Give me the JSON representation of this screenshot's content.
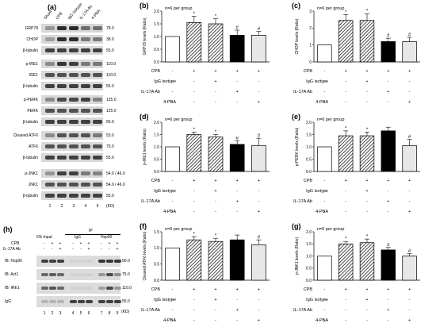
{
  "panel_a": {
    "letter": "(a)",
    "lanes": [
      "Sham",
      "CPB",
      "IgG isotype",
      "IL-17A Ab",
      "4-PBA"
    ],
    "lane_numbers": [
      "1",
      "2",
      "3",
      "4",
      "5"
    ],
    "kd_label": "(KD)",
    "rows": [
      {
        "label": "GRP78",
        "mw": "78.0",
        "intensity": [
          0.35,
          0.9,
          0.9,
          0.55,
          0.55
        ]
      },
      {
        "label": "CHOP",
        "mw": "38.0",
        "intensity": [
          0.3,
          0.9,
          0.9,
          0.5,
          0.5
        ]
      },
      {
        "label": "β-tubulin",
        "mw": "55.0",
        "intensity": [
          0.8,
          0.8,
          0.8,
          0.8,
          0.8
        ]
      },
      {
        "label": "p-IRE1",
        "mw": "110.0",
        "intensity": [
          0.4,
          0.85,
          0.8,
          0.5,
          0.5
        ]
      },
      {
        "label": "IRE1",
        "mw": "110.0",
        "intensity": [
          0.7,
          0.7,
          0.7,
          0.7,
          0.7
        ]
      },
      {
        "label": "β-tubulin",
        "mw": "55.0",
        "intensity": [
          0.8,
          0.8,
          0.8,
          0.8,
          0.8
        ]
      },
      {
        "label": "p-PERK",
        "mw": "125.0",
        "intensity": [
          0.4,
          0.75,
          0.75,
          0.8,
          0.45
        ]
      },
      {
        "label": "PERK",
        "mw": "125.0",
        "intensity": [
          0.7,
          0.7,
          0.7,
          0.7,
          0.7
        ]
      },
      {
        "label": "β-tubulin",
        "mw": "55.0",
        "intensity": [
          0.8,
          0.8,
          0.8,
          0.8,
          0.8
        ]
      },
      {
        "label": "Cleaved ATF6",
        "mw": "53.0",
        "intensity": [
          0.4,
          0.7,
          0.7,
          0.7,
          0.5
        ]
      },
      {
        "label": "ATF6",
        "mw": "75.0",
        "intensity": [
          0.7,
          0.7,
          0.7,
          0.7,
          0.7
        ]
      },
      {
        "label": "β-tubulin",
        "mw": "55.0",
        "intensity": [
          0.8,
          0.8,
          0.8,
          0.8,
          0.8
        ]
      },
      {
        "label": "p-JNK1",
        "mw": "54.0 / 46.0",
        "intensity": [
          0.35,
          0.8,
          0.8,
          0.5,
          0.45
        ]
      },
      {
        "label": "JNK1",
        "mw": "54.0 / 46.0",
        "intensity": [
          0.7,
          0.7,
          0.7,
          0.7,
          0.7
        ]
      },
      {
        "label": "β-tubulin",
        "mw": "55.0",
        "intensity": [
          0.8,
          0.8,
          0.8,
          0.8,
          0.8
        ]
      }
    ]
  },
  "panel_h": {
    "letter": "(h)",
    "ip_label": "IP",
    "groups": [
      "5% Input",
      "IgG",
      "Hsp90"
    ],
    "cpb_label": "CPB",
    "il17_label": "IL-17A Ab",
    "cpb_signs": [
      "-",
      "+",
      "+",
      "-",
      "+",
      "+",
      "-",
      "+",
      "+"
    ],
    "il17_signs": [
      "-",
      "-",
      "+",
      "-",
      "-",
      "+",
      "-",
      "-",
      "+"
    ],
    "lane_numbers": [
      "1",
      "2",
      "3",
      "4",
      "5",
      "6",
      "7",
      "8",
      "9"
    ],
    "kd_label": "(KD)",
    "rows": [
      {
        "label": "IB: Hsp90",
        "mw": "90.0",
        "intensity": [
          0.8,
          0.8,
          0.8,
          0.05,
          0.05,
          0.05,
          0.85,
          0.85,
          0.85
        ]
      },
      {
        "label": "IB: Act1",
        "mw": "75.0",
        "intensity": [
          0.6,
          0.65,
          0.6,
          0.05,
          0.05,
          0.05,
          0.35,
          0.75,
          0.4
        ]
      },
      {
        "label": "IB: IRE1",
        "mw": "110.0",
        "intensity": [
          0.6,
          0.7,
          0.6,
          0.05,
          0.05,
          0.05,
          0.3,
          0.75,
          0.35
        ]
      },
      {
        "label": "IgG",
        "mw": "55.0",
        "intensity": [
          0.2,
          0.2,
          0.2,
          0.8,
          0.8,
          0.8,
          0.8,
          0.8,
          0.8
        ]
      }
    ]
  },
  "row_labels": {
    "cpb": "CPB",
    "igg": "IgG isotype",
    "il17": "IL-17A Ab",
    "pba": "4-PBA"
  },
  "condition_signs": {
    "cpb": [
      "-",
      "+",
      "+",
      "+",
      "+"
    ],
    "igg": [
      "-",
      "-",
      "+",
      "-",
      "-"
    ],
    "il17": [
      "-",
      "-",
      "-",
      "+",
      "-"
    ],
    "pba": [
      "-",
      "-",
      "-",
      "-",
      "+"
    ]
  },
  "chart_data": [
    {
      "panel": "(b)",
      "type": "bar",
      "note": "n=6 per group",
      "ylabel": "GRP78 levels (Ratio)",
      "ylim": [
        0,
        2.0
      ],
      "yticks": [
        "0.0",
        "0.5",
        "1.0",
        "1.5",
        "2.0"
      ],
      "values": [
        1.0,
        1.55,
        1.5,
        1.05,
        1.05
      ],
      "errors": [
        0.0,
        0.25,
        0.2,
        0.2,
        0.15
      ],
      "marks": [
        "",
        "*",
        "*",
        "#",
        "#"
      ],
      "condition_rows": [
        "cpb",
        "igg",
        "il17",
        "pba"
      ]
    },
    {
      "panel": "(c)",
      "type": "bar",
      "note": "n=6 per group",
      "ylabel": "CHOP levels (Ratio)",
      "ylim": [
        0,
        3
      ],
      "yticks": [
        "0",
        "1",
        "2",
        "3"
      ],
      "values": [
        1.0,
        2.45,
        2.45,
        1.2,
        1.2
      ],
      "errors": [
        0.0,
        0.35,
        0.4,
        0.2,
        0.25
      ],
      "marks": [
        "",
        "*",
        "*",
        "#",
        "#"
      ],
      "condition_rows": [
        "cpb",
        "igg",
        "il17",
        "pba"
      ]
    },
    {
      "panel": "(d)",
      "type": "bar",
      "note": "n=6 per group",
      "ylabel": "p-IRE1 levels (Ratio)",
      "ylim": [
        0,
        2.0
      ],
      "yticks": [
        "0.0",
        "0.5",
        "1.0",
        "1.5",
        "2.0"
      ],
      "values": [
        1.0,
        1.5,
        1.4,
        1.1,
        1.05
      ],
      "errors": [
        0.0,
        0.1,
        0.1,
        0.15,
        0.3
      ],
      "marks": [
        "",
        "*",
        "*",
        "#",
        "#"
      ],
      "condition_rows": [
        "cpb",
        "igg",
        "il17",
        "pba"
      ]
    },
    {
      "panel": "(e)",
      "type": "bar",
      "note": "n=6 per group",
      "ylabel": "p-PERK levels (Ratio)",
      "ylim": [
        0,
        2.0
      ],
      "yticks": [
        "0.0",
        "0.5",
        "1.0",
        "1.5",
        "2.0"
      ],
      "values": [
        1.0,
        1.45,
        1.45,
        1.65,
        1.05
      ],
      "errors": [
        0.0,
        0.2,
        0.15,
        0.15,
        0.25
      ],
      "marks": [
        "",
        "*",
        "*",
        "",
        "#"
      ],
      "condition_rows": [
        "cpb",
        "igg",
        "il17",
        "pba"
      ]
    },
    {
      "panel": "(f)",
      "type": "bar",
      "note": "n=6 per group",
      "ylabel": "Cleaved ATF6 levels (Ratio)",
      "ylim": [
        0,
        1.5
      ],
      "yticks": [
        "0.0",
        "0.5",
        "1.0",
        "1.5"
      ],
      "values": [
        1.0,
        1.25,
        1.2,
        1.25,
        1.1
      ],
      "errors": [
        0.0,
        0.1,
        0.1,
        0.15,
        0.15
      ],
      "marks": [
        "",
        "*",
        "*",
        "",
        "#"
      ],
      "condition_rows": [
        "cpb",
        "igg",
        "il17",
        "pba"
      ]
    },
    {
      "panel": "(g)",
      "type": "bar",
      "note": "n=6 per group",
      "ylabel": "p-JNK1 levels (Ratio)",
      "ylim": [
        0,
        2.0
      ],
      "yticks": [
        "0.0",
        "0.5",
        "1.0",
        "1.5",
        "2.0"
      ],
      "values": [
        1.0,
        1.5,
        1.55,
        1.25,
        1.0
      ],
      "errors": [
        0.0,
        0.1,
        0.15,
        0.1,
        0.1
      ],
      "marks": [
        "",
        "*",
        "*",
        "#",
        "#"
      ],
      "condition_rows": [
        "cpb",
        "igg",
        "il17",
        "pba"
      ]
    }
  ]
}
